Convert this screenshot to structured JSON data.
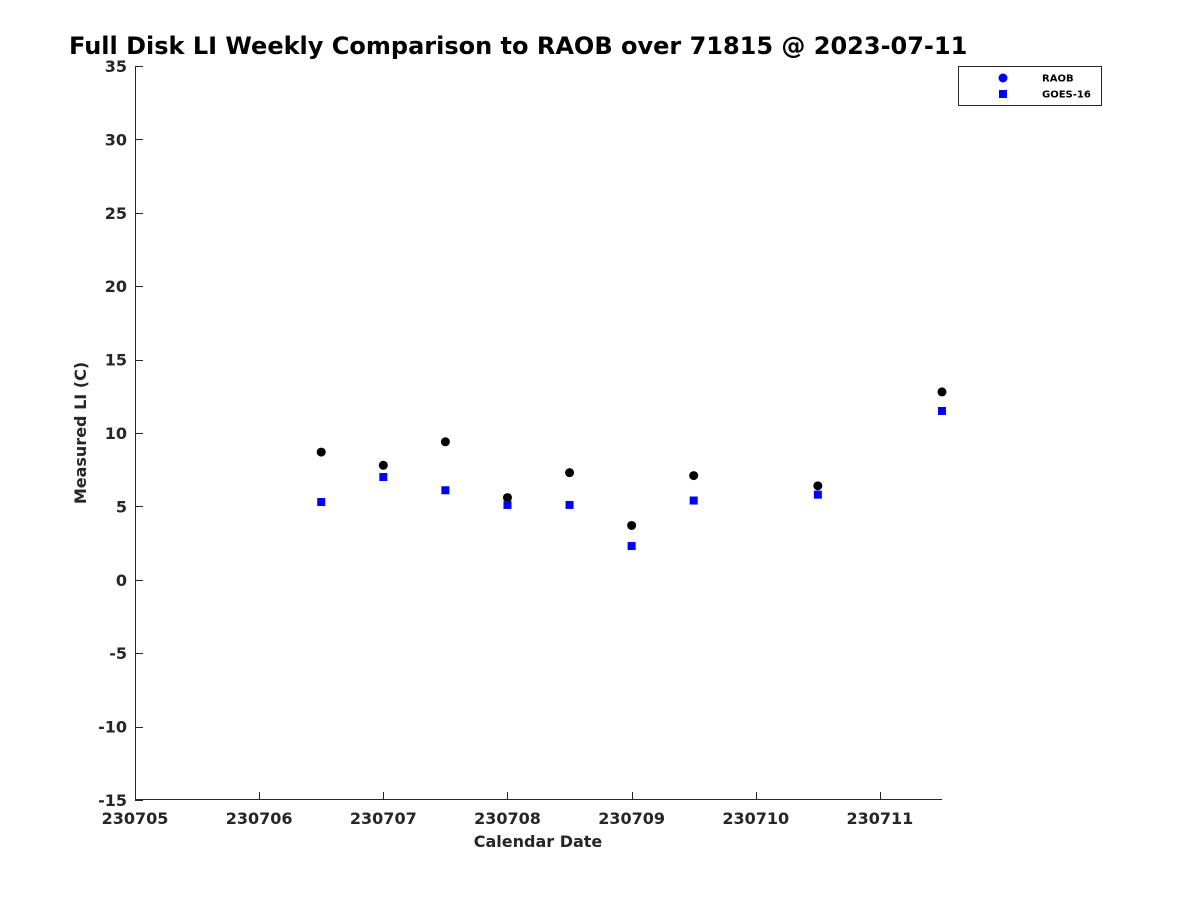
{
  "chart_data": {
    "type": "scatter",
    "title": "Full Disk LI Weekly Comparison to RAOB over 71815 @ 2023-07-11",
    "xlabel": "Calendar Date",
    "ylabel": "Measured LI (C)",
    "x_ticks": [
      "230705",
      "230706",
      "230707",
      "230708",
      "230709",
      "230710",
      "230711"
    ],
    "y_ticks": [
      "35",
      "30",
      "25",
      "20",
      "15",
      "10",
      "5",
      "0",
      "-5",
      "-10",
      "-15"
    ],
    "xlim": [
      0,
      6.5
    ],
    "ylim": [
      -15,
      35
    ],
    "grid": false,
    "legend_position": "top-right",
    "series": [
      {
        "name": "RAOB",
        "marker": "circle",
        "color": "#000000",
        "legend_color": "#0000ff",
        "x": [
          1.5,
          2.0,
          2.5,
          3.0,
          3.5,
          4.0,
          4.5,
          5.5,
          6.5
        ],
        "y": [
          8.7,
          7.8,
          9.4,
          5.6,
          7.3,
          3.7,
          7.1,
          6.4,
          12.8
        ]
      },
      {
        "name": "GOES-16",
        "marker": "square",
        "color": "#0000ff",
        "legend_color": "#0000ff",
        "x": [
          1.5,
          2.0,
          2.5,
          3.0,
          3.5,
          4.0,
          4.5,
          5.5,
          6.5
        ],
        "y": [
          5.3,
          7.0,
          6.1,
          5.1,
          5.1,
          2.3,
          5.4,
          5.8,
          11.5
        ]
      }
    ]
  }
}
